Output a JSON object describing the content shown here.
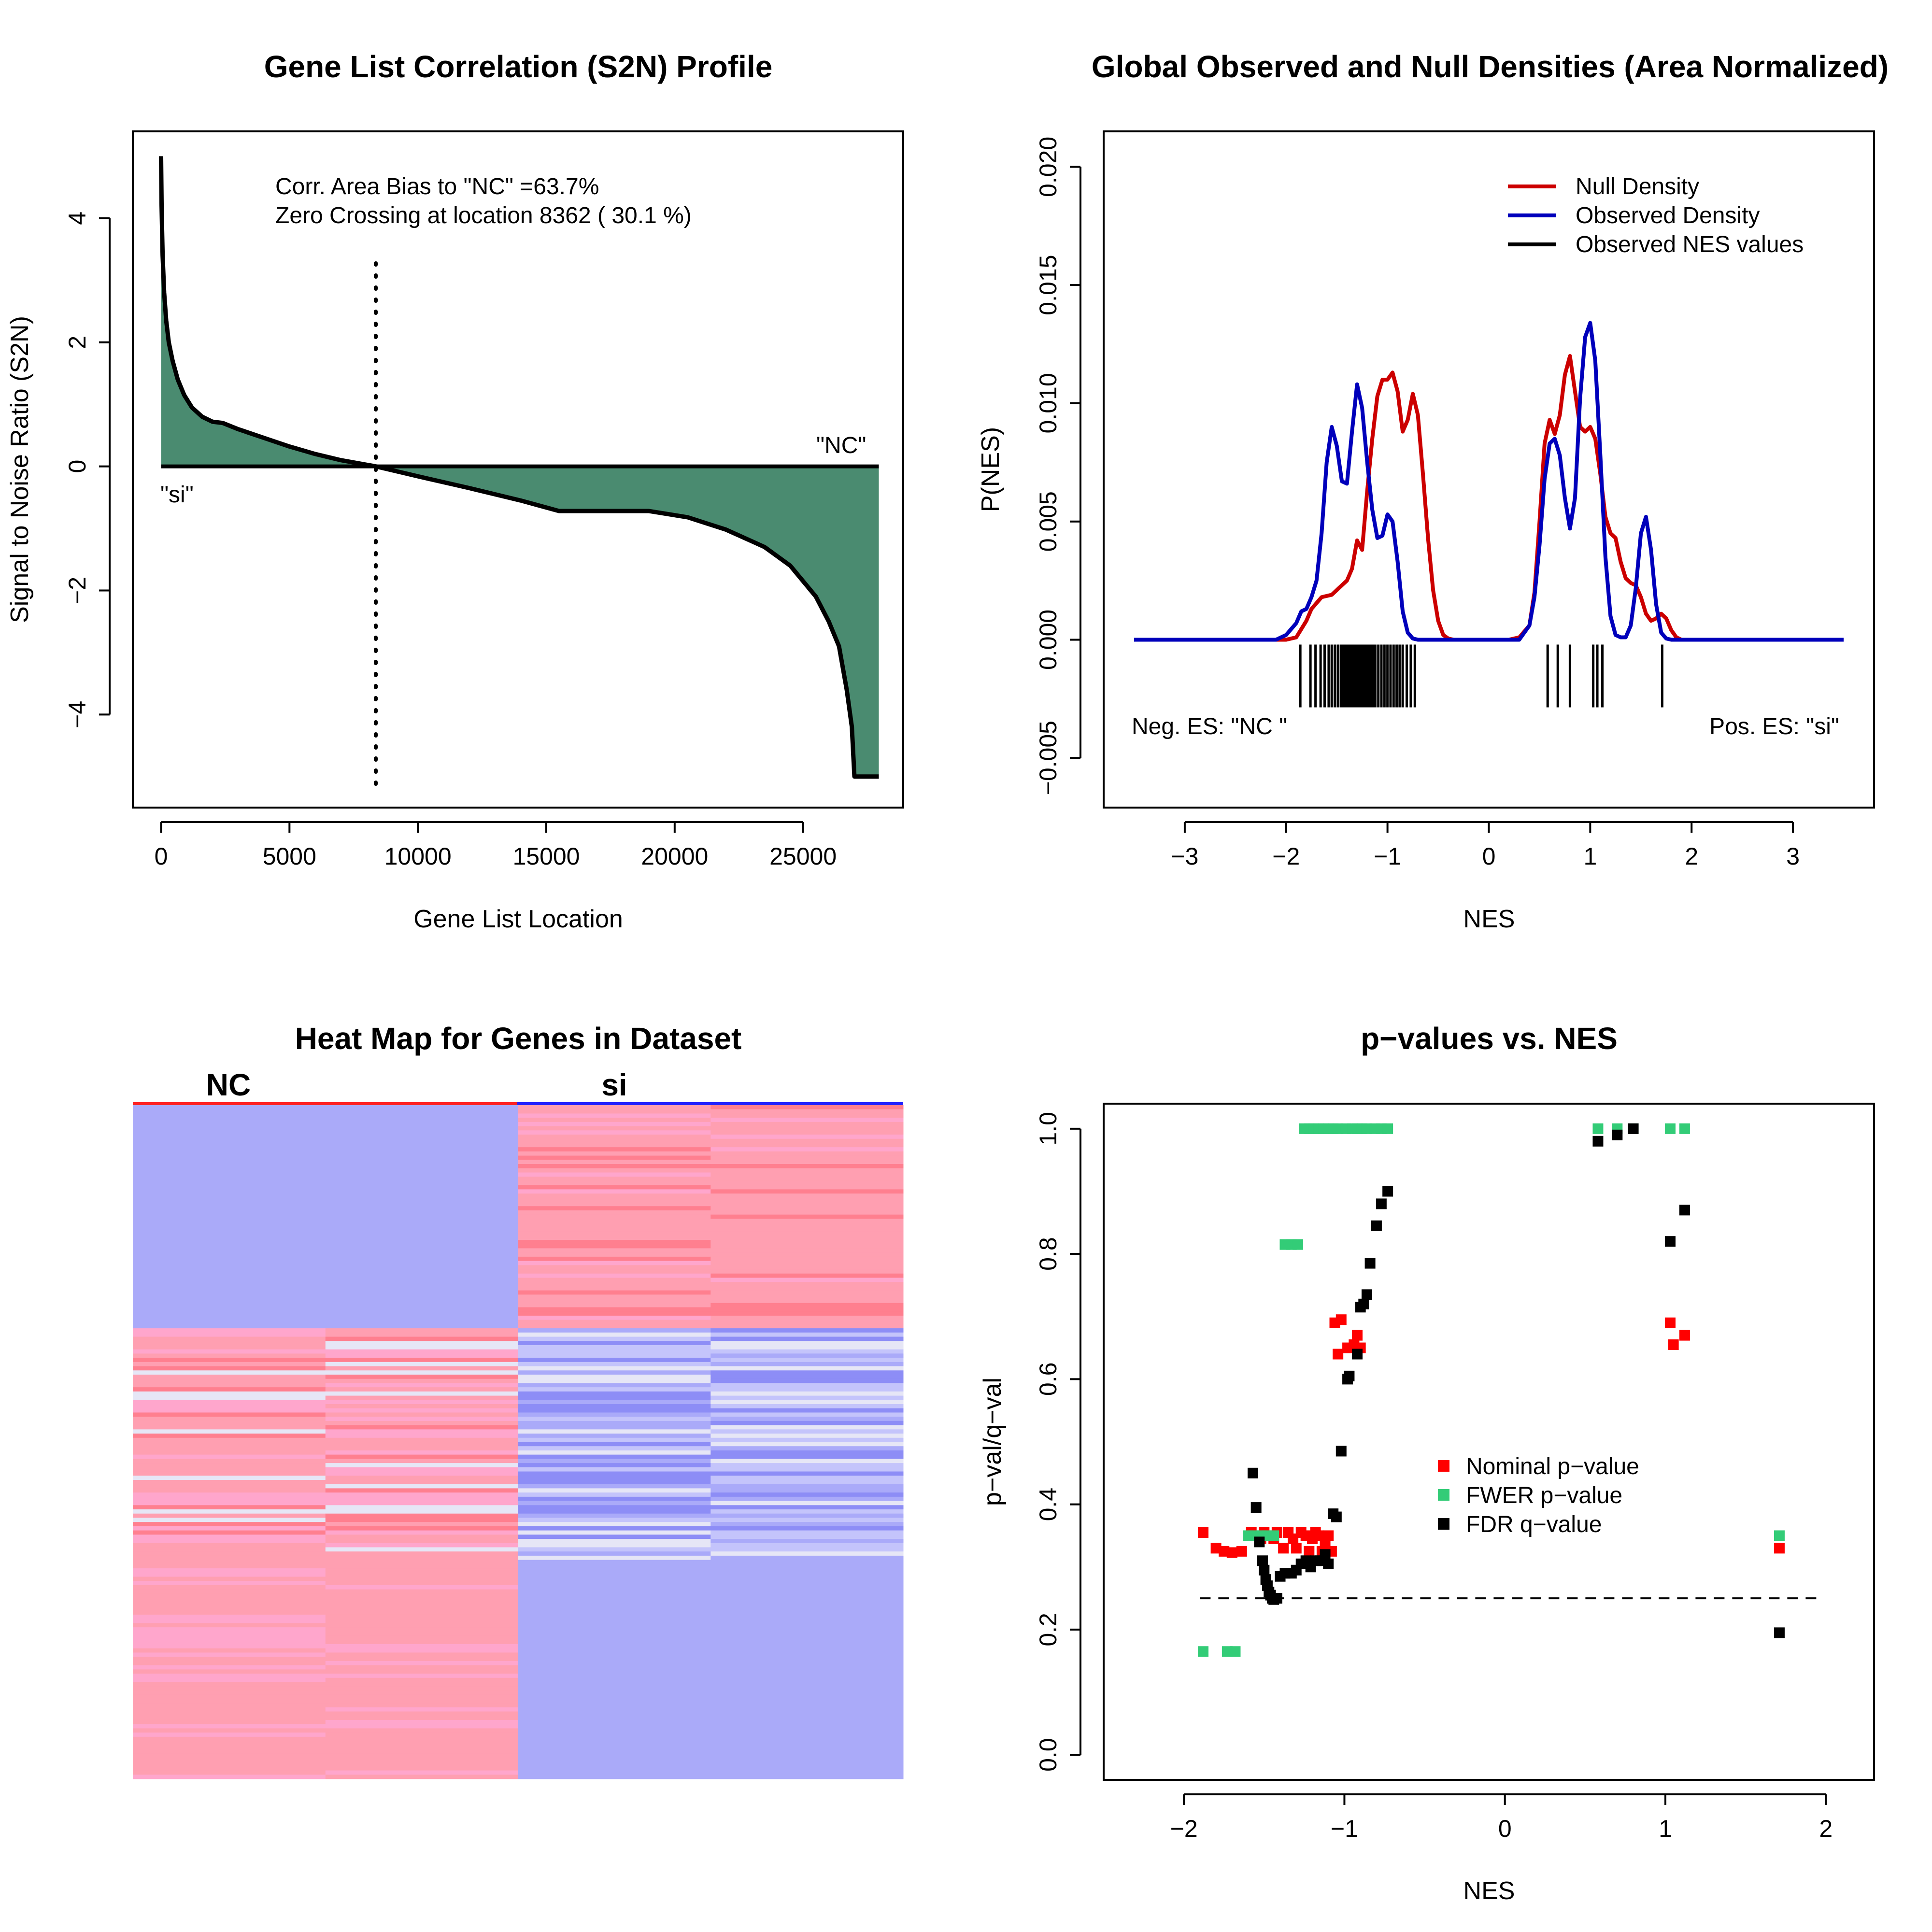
{
  "chart_data": [
    {
      "type": "area",
      "title": "Gene List Correlation (S2N) Profile",
      "xlabel": "Gene List Location",
      "ylabel": "Signal to Noise Ratio (S2N)",
      "xlim": [
        -1100,
        28900
      ],
      "ylim": [
        -5.5,
        5.4
      ],
      "xticks": [
        0,
        5000,
        10000,
        15000,
        20000,
        25000
      ],
      "xtick_labels": [
        "0",
        "5000",
        "10000",
        "15000",
        "20000",
        "25000"
      ],
      "yticks": [
        -4,
        -2,
        0,
        2,
        4
      ],
      "ytick_labels": [
        "−4",
        "−2",
        "0",
        "2",
        "4"
      ],
      "fill_color": "#4a8b70",
      "annotations": [
        "Corr. Area Bias to \"NC\" =63.7%",
        "Zero Crossing at location  8362  ( 30.1  %)"
      ],
      "label_left": "\"si\"",
      "label_right": "\"NC\"",
      "zero_crossing": 8362,
      "x": [
        0,
        20,
        60,
        120,
        200,
        300,
        450,
        650,
        900,
        1200,
        1600,
        2000,
        2400,
        3000,
        4000,
        5000,
        6000,
        7000,
        8362,
        10000,
        12000,
        14000,
        15500,
        17000,
        19000,
        20500,
        22000,
        23500,
        24500,
        25500,
        26000,
        26400,
        26700,
        26900,
        27000,
        27300,
        27950
      ],
      "y": [
        5.0,
        4.2,
        3.4,
        2.8,
        2.35,
        2.0,
        1.7,
        1.4,
        1.15,
        0.95,
        0.8,
        0.72,
        0.7,
        0.6,
        0.46,
        0.32,
        0.2,
        0.1,
        0.0,
        -0.16,
        -0.35,
        -0.55,
        -0.72,
        -0.72,
        -0.72,
        -0.82,
        -1.02,
        -1.3,
        -1.6,
        -2.1,
        -2.5,
        -2.9,
        -3.6,
        -4.2,
        -5.0,
        -5.0,
        -5.0
      ]
    },
    {
      "type": "line",
      "title": "Global Observed and Null Densities (Area Normalized)",
      "xlabel": "NES",
      "ylabel": "P(NES)",
      "xlim": [
        -3.8,
        3.8
      ],
      "ylim": [
        -0.0071,
        0.0215
      ],
      "xticks": [
        -3,
        -2,
        -1,
        0,
        1,
        2,
        3
      ],
      "xtick_labels": [
        "−3",
        "−2",
        "−1",
        "0",
        "1",
        "2",
        "3"
      ],
      "yticks": [
        -0.005,
        0,
        0.005,
        0.01,
        0.015,
        0.02
      ],
      "ytick_labels": [
        "−0.005",
        "0.000",
        "0.005",
        "0.010",
        "0.015",
        "0.020"
      ],
      "legend": "top-right",
      "series": [
        {
          "name": "Null Density",
          "color": "#cc0000",
          "x": [
            -3.5,
            -2.0,
            -1.9,
            -1.8,
            -1.75,
            -1.65,
            -1.55,
            -1.45,
            -1.4,
            -1.35,
            -1.3,
            -1.25,
            -1.2,
            -1.15,
            -1.1,
            -1.05,
            -1.0,
            -0.95,
            -0.9,
            -0.85,
            -0.8,
            -0.75,
            -0.7,
            -0.65,
            -0.6,
            -0.55,
            -0.5,
            -0.45,
            -0.4,
            -0.35,
            -0.3,
            -0.2,
            0.2,
            0.3,
            0.4,
            0.45,
            0.5,
            0.55,
            0.6,
            0.65,
            0.7,
            0.75,
            0.8,
            0.85,
            0.9,
            0.95,
            1.0,
            1.05,
            1.1,
            1.15,
            1.2,
            1.25,
            1.3,
            1.35,
            1.4,
            1.45,
            1.5,
            1.55,
            1.6,
            1.65,
            1.7,
            1.75,
            1.8,
            1.85,
            1.9,
            2.0,
            3.5
          ],
          "y": [
            0,
            0,
            0.0001,
            0.0008,
            0.0013,
            0.0018,
            0.0019,
            0.0023,
            0.0025,
            0.003,
            0.0042,
            0.0038,
            0.0063,
            0.0085,
            0.0103,
            0.011,
            0.011,
            0.0113,
            0.0105,
            0.0088,
            0.0093,
            0.0104,
            0.0095,
            0.007,
            0.0043,
            0.0021,
            0.0008,
            0.0002,
            5e-05,
            0,
            0,
            0,
            0,
            0.0001,
            0.0006,
            0.002,
            0.005,
            0.0083,
            0.0093,
            0.0087,
            0.0095,
            0.0112,
            0.012,
            0.0105,
            0.009,
            0.0088,
            0.009,
            0.0085,
            0.007,
            0.0052,
            0.0045,
            0.0043,
            0.0033,
            0.0026,
            0.0024,
            0.0023,
            0.0018,
            0.0011,
            0.0008,
            0.0009,
            0.0011,
            0.0009,
            0.0004,
            0.0001,
            0,
            0,
            0
          ]
        },
        {
          "name": "Observed Density",
          "color": "#0000bb",
          "x": [
            -3.5,
            -2.1,
            -2.0,
            -1.9,
            -1.85,
            -1.8,
            -1.75,
            -1.7,
            -1.65,
            -1.6,
            -1.55,
            -1.5,
            -1.45,
            -1.4,
            -1.35,
            -1.3,
            -1.25,
            -1.2,
            -1.15,
            -1.1,
            -1.05,
            -1.0,
            -0.95,
            -0.9,
            -0.85,
            -0.8,
            -0.75,
            -0.7,
            -0.65,
            -0.6,
            -0.5,
            -0.4,
            0.3,
            0.4,
            0.45,
            0.5,
            0.55,
            0.6,
            0.65,
            0.7,
            0.75,
            0.8,
            0.85,
            0.9,
            0.95,
            1.0,
            1.05,
            1.1,
            1.15,
            1.2,
            1.25,
            1.3,
            1.35,
            1.4,
            1.45,
            1.5,
            1.55,
            1.6,
            1.65,
            1.7,
            1.75,
            1.8,
            1.85,
            1.9,
            2.0,
            3.5
          ],
          "y": [
            0,
            0,
            0.0002,
            0.0007,
            0.0012,
            0.0013,
            0.0018,
            0.0025,
            0.0045,
            0.0075,
            0.009,
            0.0082,
            0.0067,
            0.0066,
            0.0088,
            0.0108,
            0.0098,
            0.0075,
            0.0055,
            0.0043,
            0.0044,
            0.0053,
            0.005,
            0.0033,
            0.0012,
            0.0003,
            5e-05,
            0,
            0,
            0,
            0,
            0,
            0,
            0.0006,
            0.0018,
            0.004,
            0.0068,
            0.0083,
            0.0085,
            0.0078,
            0.006,
            0.0047,
            0.006,
            0.0102,
            0.0128,
            0.0134,
            0.0118,
            0.0078,
            0.0035,
            0.001,
            0.0002,
            0.0001,
            0.0001,
            0.0006,
            0.0022,
            0.0045,
            0.0052,
            0.0038,
            0.0015,
            0.0003,
            5e-05,
            0,
            0,
            0,
            0,
            0
          ]
        },
        {
          "name": "Observed NES values",
          "color": "#000000",
          "type": "rug",
          "x": [
            -1.86,
            -1.76,
            -1.71,
            -1.66,
            -1.62,
            -1.58,
            -1.55,
            -1.52,
            -1.49,
            -1.46,
            -1.44,
            -1.42,
            -1.4,
            -1.38,
            -1.36,
            -1.34,
            -1.32,
            -1.3,
            -1.28,
            -1.26,
            -1.24,
            -1.22,
            -1.2,
            -1.18,
            -1.16,
            -1.14,
            -1.12,
            -1.09,
            -1.06,
            -1.03,
            -1.0,
            -0.97,
            -0.94,
            -0.91,
            -0.88,
            -0.85,
            -0.81,
            -0.77,
            -0.73,
            0.58,
            0.68,
            0.8,
            1.03,
            1.07,
            1.12,
            1.71
          ]
        }
      ],
      "annotations": [
        "Neg. ES: \"NC \"",
        "Pos. ES: \"si\""
      ]
    },
    {
      "type": "heatmap",
      "title": "Heat Map for Genes in Dataset",
      "columns": [
        "NC",
        "si"
      ],
      "group_colors": {
        "NC": "#ff2222",
        "si": "#2222ff"
      },
      "palette": {
        "strong_blue": "#8d8df6",
        "blue": "#aaaaf9",
        "light_blue": "#c4c4fb",
        "pale": "#e6e6f6",
        "pink": "#ff9fb1",
        "light_pink": "#ffa6cc",
        "red": "#ff7f8f"
      }
    },
    {
      "type": "scatter",
      "title": "p−values vs. NES",
      "xlabel": "NES",
      "ylabel": "p−val/q−val",
      "xlim": [
        -2.5,
        2.3
      ],
      "ylim": [
        -0.04,
        1.04
      ],
      "xticks": [
        -2,
        -1,
        0,
        1,
        2
      ],
      "xtick_labels": [
        "−2",
        "−1",
        "0",
        "1",
        "2"
      ],
      "yticks": [
        0,
        0.2,
        0.4,
        0.6,
        0.8,
        1.0
      ],
      "ytick_labels": [
        "0.0",
        "0.2",
        "0.4",
        "0.6",
        "0.8",
        "1.0"
      ],
      "reference_line_y": 0.25,
      "legend": "center",
      "series": [
        {
          "name": "Nominal p−value",
          "color": "#ff0000",
          "x": [
            -1.88,
            -1.8,
            -1.75,
            -1.7,
            -1.64,
            -1.58,
            -1.55,
            -1.52,
            -1.5,
            -1.47,
            -1.44,
            -1.42,
            -1.38,
            -1.35,
            -1.32,
            -1.3,
            -1.27,
            -1.24,
            -1.22,
            -1.2,
            -1.18,
            -1.16,
            -1.14,
            -1.12,
            -1.1,
            -1.08,
            -1.06,
            -1.04,
            -1.02,
            -0.98,
            -0.94,
            -0.92,
            -0.9,
            1.03,
            1.05,
            1.12,
            1.71
          ],
          "y": [
            0.355,
            0.33,
            0.325,
            0.323,
            0.325,
            0.355,
            0.35,
            0.345,
            0.355,
            0.35,
            0.345,
            0.355,
            0.33,
            0.355,
            0.345,
            0.33,
            0.355,
            0.35,
            0.325,
            0.345,
            0.355,
            0.35,
            0.325,
            0.34,
            0.35,
            0.325,
            0.69,
            0.64,
            0.695,
            0.65,
            0.655,
            0.67,
            0.65,
            0.69,
            0.655,
            0.67,
            0.33
          ]
        },
        {
          "name": "FWER p−value",
          "color": "#33cc77",
          "x": [
            -1.88,
            -1.73,
            -1.68,
            -1.6,
            -1.56,
            -1.52,
            -1.48,
            -1.44,
            -1.37,
            -1.33,
            -1.29,
            -1.25,
            -1.22,
            -1.19,
            -1.16,
            -1.13,
            -1.1,
            -1.07,
            -1.04,
            -0.99,
            -0.95,
            -0.92,
            -0.89,
            -0.86,
            -0.81,
            -0.77,
            -0.73,
            0.58,
            0.7,
            0.8,
            1.03,
            1.12,
            1.71
          ],
          "y": [
            0.165,
            0.165,
            0.165,
            0.35,
            0.35,
            0.35,
            0.35,
            0.35,
            0.815,
            0.815,
            0.815,
            1.0,
            1.0,
            1.0,
            1.0,
            1.0,
            1.0,
            1.0,
            1.0,
            1.0,
            1.0,
            1.0,
            1.0,
            1.0,
            1.0,
            1.0,
            1.0,
            1.0,
            1.0,
            1.0,
            1.0,
            1.0,
            0.35
          ]
        },
        {
          "name": "FDR q−value",
          "color": "#000000",
          "x": [
            -1.57,
            -1.55,
            -1.53,
            -1.51,
            -1.5,
            -1.49,
            -1.48,
            -1.47,
            -1.46,
            -1.45,
            -1.44,
            -1.42,
            -1.4,
            -1.37,
            -1.33,
            -1.3,
            -1.27,
            -1.24,
            -1.21,
            -1.18,
            -1.15,
            -1.12,
            -1.1,
            -1.07,
            -1.05,
            -1.02,
            -0.98,
            -0.97,
            -0.92,
            -0.9,
            -0.88,
            -0.86,
            -0.84,
            -0.8,
            -0.77,
            -0.73,
            0.58,
            0.7,
            0.8,
            1.03,
            1.12,
            1.71
          ],
          "y": [
            0.45,
            0.395,
            0.34,
            0.31,
            0.295,
            0.28,
            0.27,
            0.26,
            0.255,
            0.25,
            0.248,
            0.25,
            0.285,
            0.29,
            0.29,
            0.295,
            0.305,
            0.31,
            0.3,
            0.31,
            0.31,
            0.32,
            0.305,
            0.385,
            0.38,
            0.485,
            0.6,
            0.605,
            0.64,
            0.715,
            0.72,
            0.735,
            0.785,
            0.845,
            0.88,
            0.9,
            0.98,
            0.99,
            1.0,
            0.82,
            0.87,
            0.195
          ]
        }
      ]
    }
  ]
}
